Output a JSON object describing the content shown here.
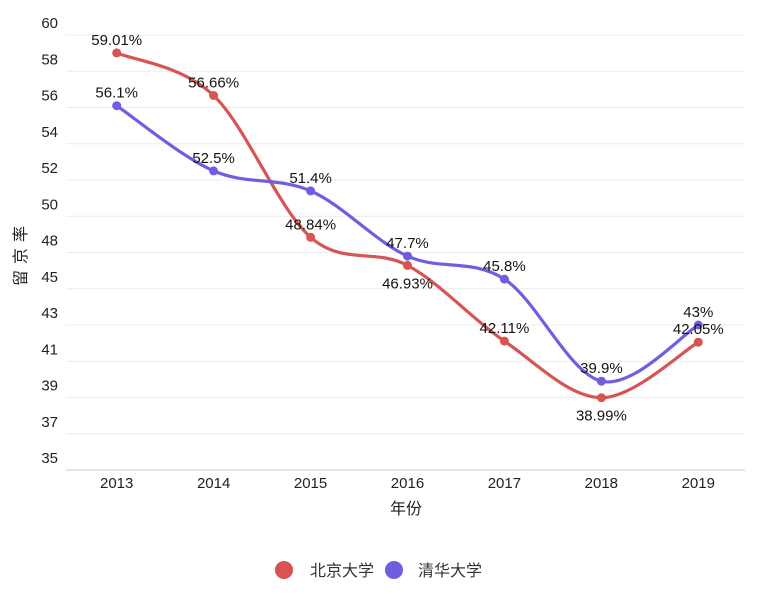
{
  "chart_data": {
    "type": "line",
    "x": [
      "2013",
      "2014",
      "2015",
      "2016",
      "2017",
      "2018",
      "2019"
    ],
    "xlabel": "年份",
    "ylabel": "留京率",
    "y_ticks": [
      "60",
      "58",
      "56",
      "54",
      "52",
      "50",
      "48",
      "45",
      "43",
      "41",
      "39",
      "37",
      "35"
    ],
    "ylim_note": "ticks listed top to bottom as rendered, non-uniform sequence as shown",
    "grid": true,
    "legend_position": "bottom",
    "series": [
      {
        "name": "北京大学",
        "color": "#d75452",
        "values": [
          59.01,
          56.66,
          48.84,
          46.93,
          42.11,
          38.99,
          42.05
        ],
        "labels": [
          "59.01%",
          "56.66%",
          "48.84%",
          "46.93%",
          "42.11%",
          "38.99%",
          "42.05%"
        ],
        "label_positions": [
          "above",
          "above",
          "above",
          "below",
          "above",
          "below",
          "above"
        ]
      },
      {
        "name": "清华大学",
        "color": "#6e5fe0",
        "values": [
          56.1,
          52.5,
          51.4,
          47.7,
          45.8,
          39.9,
          43
        ],
        "labels": [
          "56.1%",
          "52.5%",
          "51.4%",
          "47.7%",
          "45.8%",
          "39.9%",
          "43%"
        ],
        "label_positions": [
          "above",
          "above",
          "above",
          "above",
          "above",
          "above",
          "above"
        ]
      }
    ]
  }
}
